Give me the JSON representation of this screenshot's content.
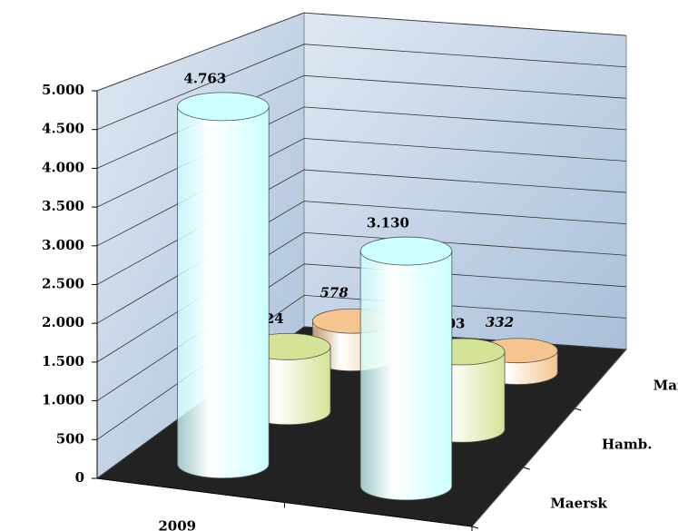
{
  "chart_data": {
    "type": "bar3d",
    "categories": [
      "2009",
      null
    ],
    "series": [
      {
        "name": "Maersk",
        "color": "#ccffff",
        "values": [
          4763,
          3130
        ],
        "value_labels": [
          "4.763",
          "3.130"
        ]
      },
      {
        "name": "Hamb.",
        "color": "#d4e396",
        "values": [
          924,
          1103
        ],
        "value_labels": [
          "924",
          "1.103"
        ]
      },
      {
        "name": "Maruba",
        "color": "#f6c48e",
        "values": [
          578,
          332
        ],
        "value_labels": [
          "578",
          "332"
        ]
      }
    ],
    "ylim": [
      0,
      5000
    ],
    "yticks": [
      0,
      500,
      {
        "value": 1000,
        "label": "1.000"
      },
      {
        "value": 1500,
        "label": "1.500"
      },
      {
        "value": 2000,
        "label": "2.000"
      },
      {
        "value": 2500,
        "label": "2.500"
      },
      {
        "value": 3000,
        "label": "3.000"
      },
      {
        "value": 3500,
        "label": "3.500"
      },
      {
        "value": 4000,
        "label": "4.000"
      },
      {
        "value": 4500,
        "label": "4.500"
      },
      {
        "value": 5000,
        "label": "5.000"
      }
    ],
    "grid": true
  }
}
